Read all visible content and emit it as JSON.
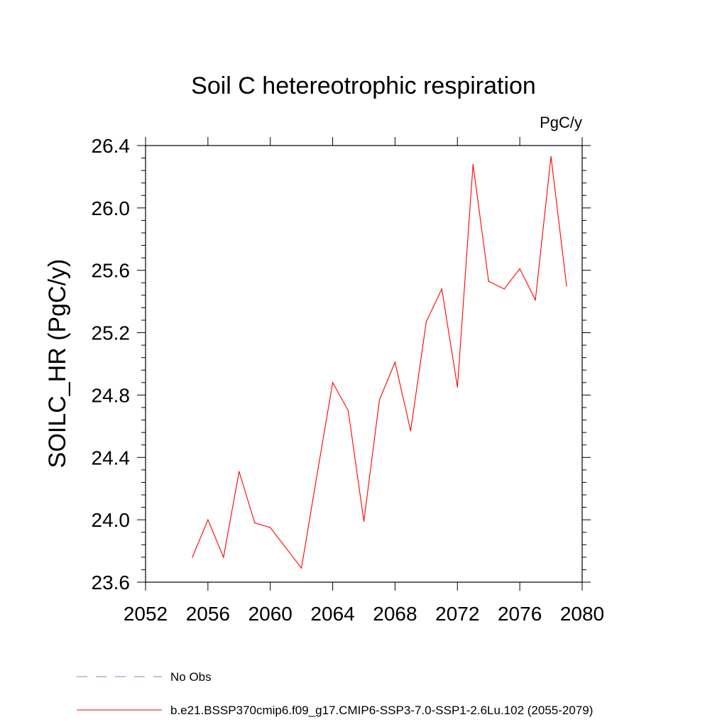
{
  "chart_data": {
    "type": "line",
    "title": "Soil C hetereotrophic respiration",
    "units": "PgC/y",
    "ylabel": "SOILC_HR  (PgC/y)",
    "xlabel": "",
    "xlim": [
      2052,
      2080
    ],
    "ylim": [
      23.6,
      26.4
    ],
    "x_ticks": [
      2052,
      2056,
      2060,
      2064,
      2068,
      2072,
      2076,
      2080
    ],
    "x_tick_labels": [
      "2052",
      "2056",
      "2060",
      "2064",
      "2068",
      "2072",
      "2076",
      "2080"
    ],
    "y_ticks": [
      23.6,
      24.0,
      24.4,
      24.8,
      25.2,
      25.6,
      26.0,
      26.4
    ],
    "y_tick_labels": [
      "23.6",
      "24.0",
      "24.4",
      "24.8",
      "25.2",
      "25.6",
      "26.0",
      "26.4"
    ],
    "grid": false,
    "legend_position": "bottom",
    "series": [
      {
        "name": "b.e21.BSSP370cmip6.f09_g17.CMIP6-SSP3-7.0-SSP1-2.6Lu.102 (2055-2079)",
        "color": "#ff0000",
        "x": [
          2055,
          2056,
          2057,
          2058,
          2059,
          2060,
          2061,
          2062,
          2063,
          2064,
          2065,
          2066,
          2067,
          2068,
          2069,
          2070,
          2071,
          2072,
          2073,
          2074,
          2075,
          2076,
          2077,
          2078,
          2079
        ],
        "values": [
          23.76,
          24.0,
          23.76,
          24.31,
          23.98,
          23.95,
          23.82,
          23.69,
          24.29,
          24.88,
          24.7,
          23.99,
          24.77,
          25.01,
          24.57,
          25.27,
          25.48,
          24.85,
          26.28,
          25.53,
          25.48,
          25.61,
          25.41,
          26.33,
          25.5
        ]
      }
    ],
    "legend": [
      {
        "label": "No Obs",
        "color": "#8a7fc8",
        "style": "dashed"
      },
      {
        "label": "b.e21.BSSP370cmip6.f09_g17.CMIP6-SSP3-7.0-SSP1-2.6Lu.102 (2055-2079)",
        "color": "#ff0000",
        "style": "solid"
      }
    ]
  }
}
